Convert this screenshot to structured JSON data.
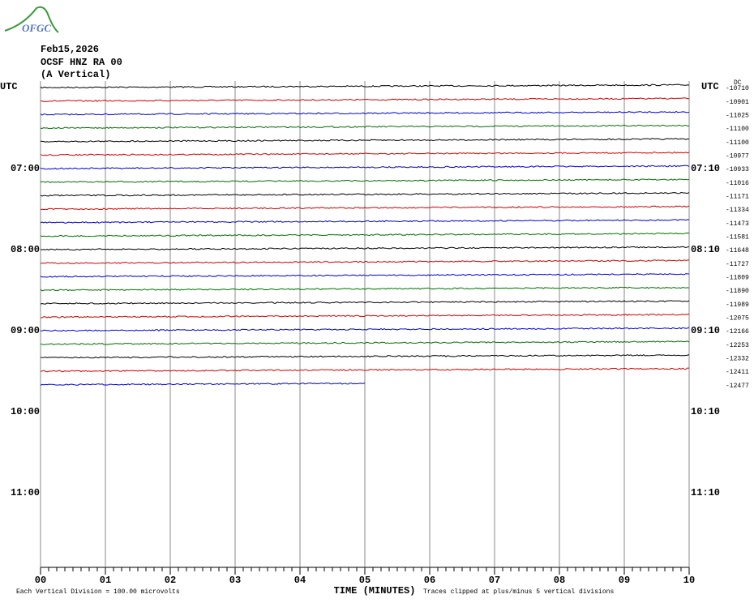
{
  "logo": "OFGC",
  "chart_data": {
    "type": "helicorder",
    "date": "Feb15,2026",
    "station": "OCSF HNZ RA 00",
    "component": "(A Vertical)",
    "timezone": "UTC",
    "dc_label": "DC",
    "left_hour_labels": [
      "07:00",
      "08:00",
      "09:00",
      "10:00",
      "11:00"
    ],
    "right_hour_labels": [
      "07:10",
      "08:10",
      "09:10",
      "10:10",
      "11:10"
    ],
    "xlabel": "TIME (MINUTES)",
    "xlim": [
      0,
      10
    ],
    "xticks": [
      {
        "value": 0,
        "label": "00"
      },
      {
        "value": 1,
        "label": "01"
      },
      {
        "value": 2,
        "label": "02"
      },
      {
        "value": 3,
        "label": "03"
      },
      {
        "value": 4,
        "label": "04"
      },
      {
        "value": 5,
        "label": "05"
      },
      {
        "value": 6,
        "label": "06"
      },
      {
        "value": 7,
        "label": "07"
      },
      {
        "value": 8,
        "label": "08"
      },
      {
        "value": 9,
        "label": "09"
      },
      {
        "value": 10,
        "label": "10"
      }
    ],
    "scale_note": "Each Vertical Division =  100.00 microvolts",
    "clip_note": "Traces clipped at plus/minus 5 vertical divisions",
    "trace_colors": [
      "#000000",
      "#d00000",
      "#0000d0",
      "#007000"
    ],
    "dc_offsets": [
      -10710,
      -10901,
      -11025,
      -11100,
      -11100,
      -10977,
      -10933,
      -11016,
      -11171,
      -11334,
      -11473,
      -11581,
      -11648,
      -11727,
      -11809,
      -11890,
      -11989,
      -12075,
      -12166,
      -12253,
      -12332,
      -12411,
      -12477
    ],
    "trace_end": [
      10,
      10,
      10,
      10,
      10,
      10,
      10,
      10,
      10,
      10,
      10,
      10,
      10,
      10,
      10,
      10,
      10,
      10,
      10,
      10,
      10,
      10,
      5
    ]
  }
}
